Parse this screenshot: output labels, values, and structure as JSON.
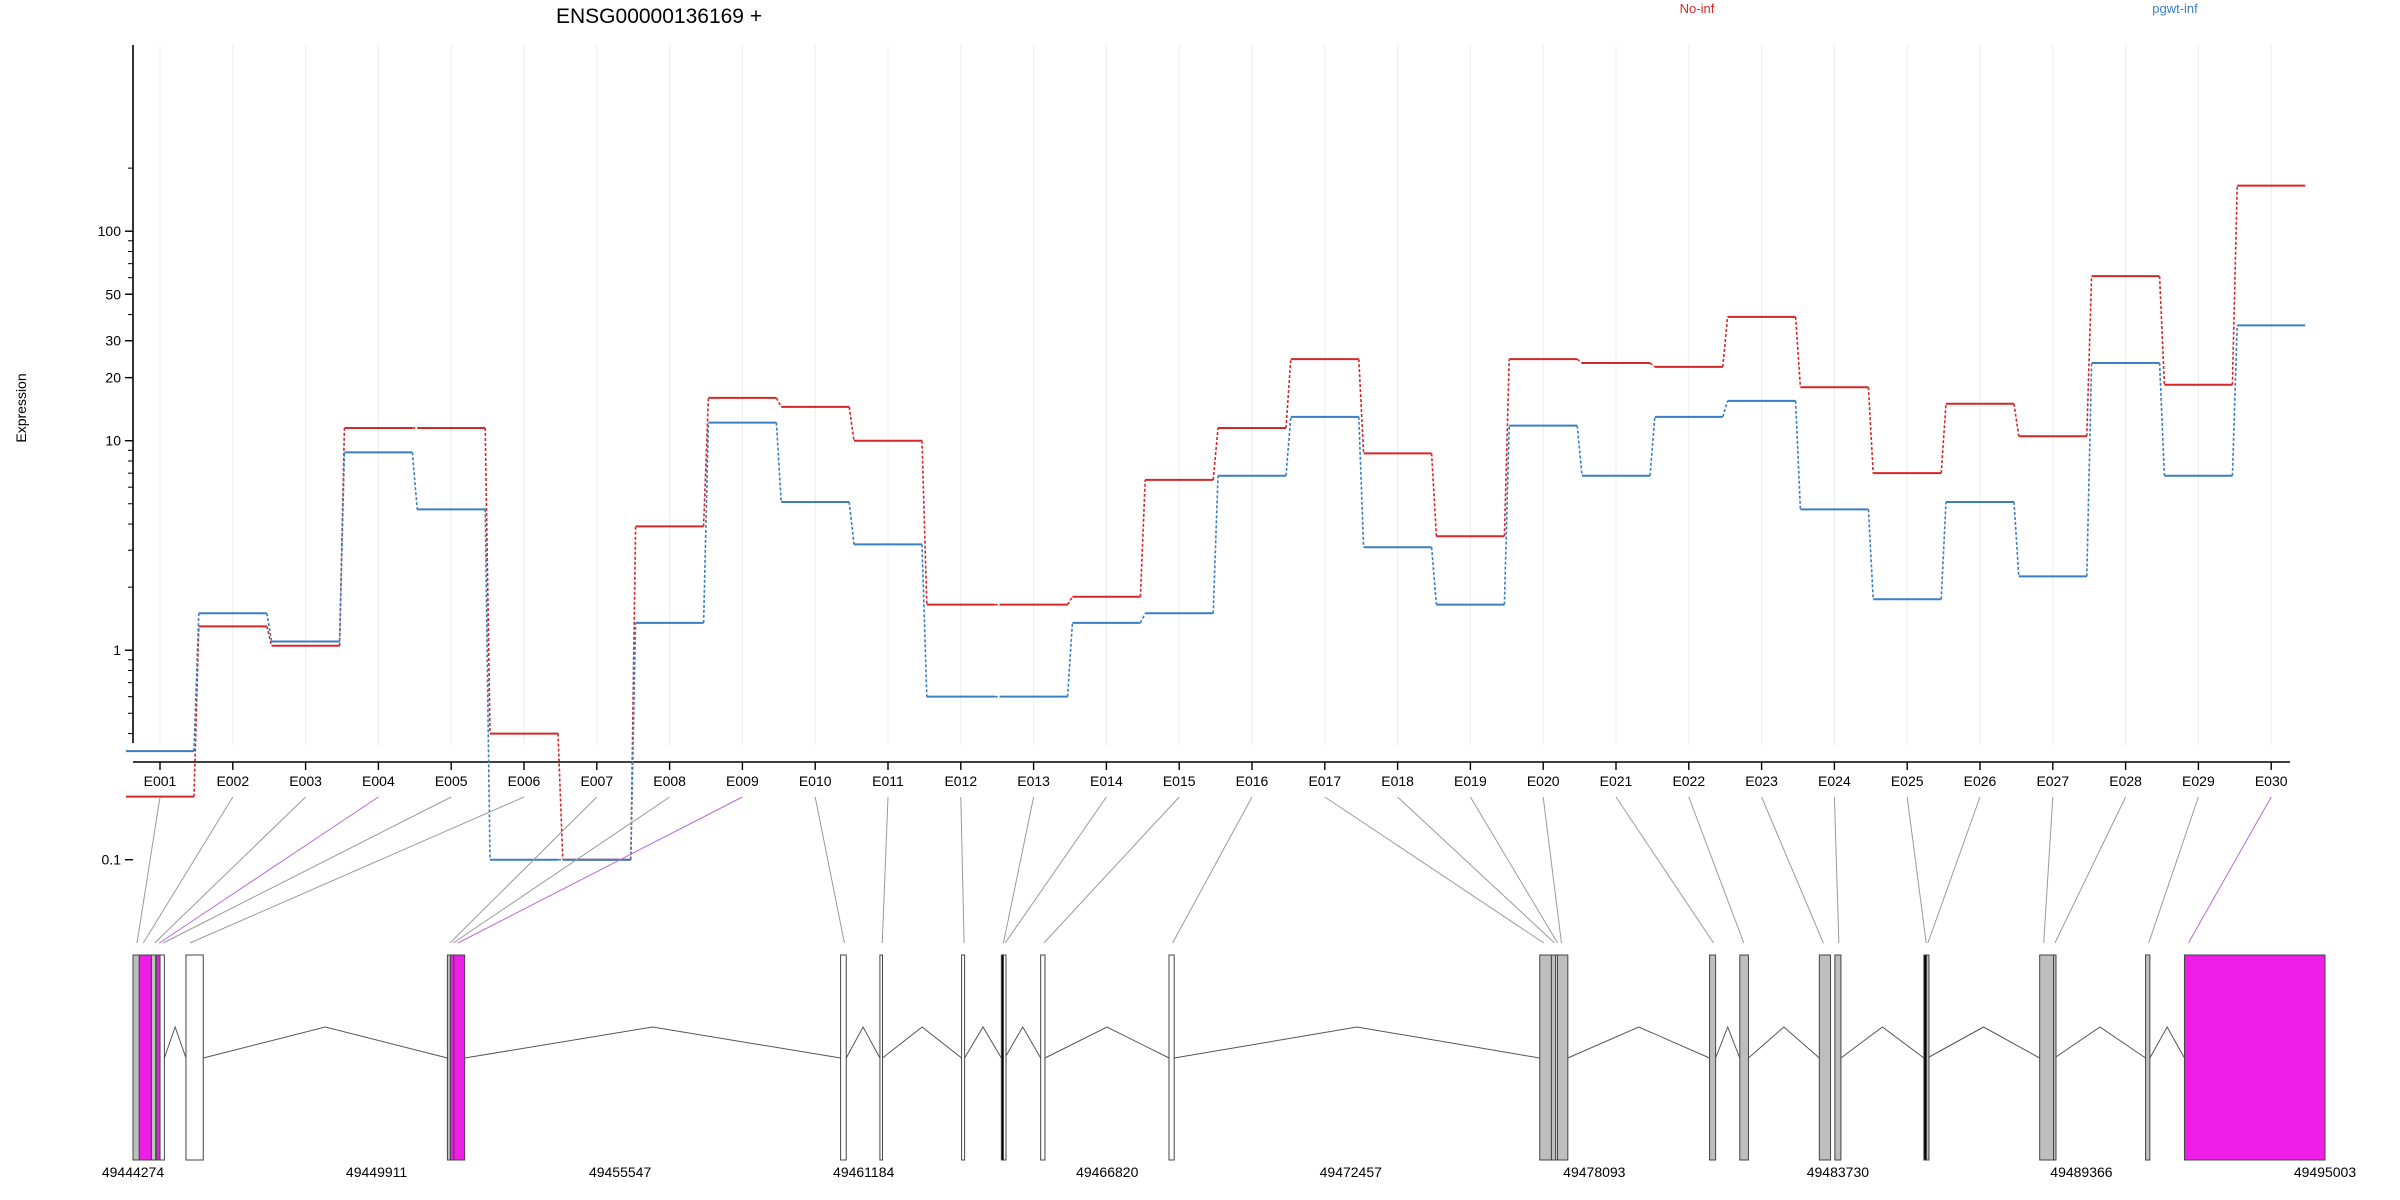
{
  "chart_data": {
    "type": "line",
    "title": "ENSG00000136169 +",
    "ylabel": "Expression",
    "yscale": "log",
    "y_ticks": [
      0.1,
      1,
      10,
      20,
      30,
      50,
      100
    ],
    "y_tick_labels": [
      "0.1",
      "1",
      "10",
      "20",
      "30",
      "50",
      "100"
    ],
    "grid": "vertical",
    "legend": "top",
    "categories": [
      "E001",
      "E002",
      "E003",
      "E004",
      "E005",
      "E006",
      "E007",
      "E008",
      "E009",
      "E010",
      "E011",
      "E012",
      "E013",
      "E014",
      "E015",
      "E016",
      "E017",
      "E018",
      "E019",
      "E020",
      "E021",
      "E022",
      "E023",
      "E024",
      "E025",
      "E026",
      "E027",
      "E028",
      "E029",
      "E030"
    ],
    "series": [
      {
        "name": "No-inf",
        "color": "#d62728",
        "values": [
          0.2,
          1.3,
          1.05,
          11.5,
          11.5,
          0.4,
          0.1,
          3.9,
          16,
          14.5,
          10,
          1.65,
          1.65,
          1.8,
          6.5,
          11.5,
          24.5,
          8.7,
          3.5,
          24.5,
          23.5,
          22.5,
          39,
          18,
          7,
          15,
          10.5,
          61,
          18.5,
          165
        ]
      },
      {
        "name": "pgwt-inf",
        "color": "#3a7fc1",
        "values": [
          0.33,
          1.5,
          1.1,
          8.8,
          4.7,
          0.1,
          0.1,
          1.35,
          12.2,
          5.1,
          3.2,
          0.6,
          0.6,
          1.35,
          1.5,
          6.8,
          13,
          3.1,
          1.65,
          11.8,
          6.8,
          13,
          15.5,
          4.7,
          1.75,
          5.1,
          2.25,
          23.5,
          6.8,
          35.5
        ]
      }
    ],
    "gene_model": {
      "coordinate_labels": [
        "49444274",
        "49449911",
        "49455547",
        "49461184",
        "49466820",
        "49472457",
        "49478093",
        "49483730",
        "49489366",
        "49495003"
      ],
      "coord_range": [
        49444274,
        49495003
      ],
      "exon_bins": [
        {
          "id": "E001",
          "start": 49444274,
          "end": 49444420,
          "fill": "#bebebe"
        },
        {
          "id": "E002",
          "start": 49444420,
          "end": 49444700,
          "fill": "#ee1ee6"
        },
        {
          "id": "E003",
          "start": 49444700,
          "end": 49444800,
          "fill": "#bebebe"
        },
        {
          "id": "E004",
          "start": 49444820,
          "end": 49444900,
          "fill": "#ee1ee6"
        },
        {
          "id": "E005",
          "start": 49444900,
          "end": 49445000,
          "fill": "#ffffff"
        },
        {
          "id": "E006",
          "start": 49445500,
          "end": 49445900,
          "fill": "#ffffff"
        },
        {
          "id": "E007",
          "start": 49451550,
          "end": 49451620,
          "fill": "#bebebe"
        },
        {
          "id": "E008",
          "start": 49451620,
          "end": 49451700,
          "fill": "#ee1ee6"
        },
        {
          "id": "E009",
          "start": 49451700,
          "end": 49451950,
          "fill": "#ee1ee6"
        },
        {
          "id": "E010",
          "start": 49460650,
          "end": 49460780,
          "fill": "#ffffff"
        },
        {
          "id": "E011",
          "start": 49461560,
          "end": 49461620,
          "fill": "#ffffff"
        },
        {
          "id": "E012",
          "start": 49463450,
          "end": 49463520,
          "fill": "#ffffff"
        },
        {
          "id": "E013",
          "start": 49464370,
          "end": 49464420,
          "fill": "#000000"
        },
        {
          "id": "E014",
          "start": 49464420,
          "end": 49464450,
          "fill": "#ffffff"
        },
        {
          "id": "E015",
          "start": 49465280,
          "end": 49465380,
          "fill": "#ffffff"
        },
        {
          "id": "E016",
          "start": 49468250,
          "end": 49468370,
          "fill": "#ffffff"
        },
        {
          "id": "E017",
          "start": 49476830,
          "end": 49477100,
          "fill": "#bebebe"
        },
        {
          "id": "E018",
          "start": 49477100,
          "end": 49477200,
          "fill": "#bebebe"
        },
        {
          "id": "E019",
          "start": 49477200,
          "end": 49477240,
          "fill": "#ffffff"
        },
        {
          "id": "E020",
          "start": 49477240,
          "end": 49477480,
          "fill": "#bebebe"
        },
        {
          "id": "E021",
          "start": 49480760,
          "end": 49480900,
          "fill": "#bebebe"
        },
        {
          "id": "E022",
          "start": 49481460,
          "end": 49481660,
          "fill": "#bebebe"
        },
        {
          "id": "E023",
          "start": 49483300,
          "end": 49483560,
          "fill": "#bebebe"
        },
        {
          "id": "E024",
          "start": 49483660,
          "end": 49483800,
          "fill": "#bebebe"
        },
        {
          "id": "E025",
          "start": 49485720,
          "end": 49485780,
          "fill": "#000000"
        },
        {
          "id": "E026",
          "start": 49485780,
          "end": 49485800,
          "fill": "#bebebe"
        },
        {
          "id": "E027",
          "start": 49488400,
          "end": 49488720,
          "fill": "#bebebe"
        },
        {
          "id": "E028",
          "start": 49488720,
          "end": 49488740,
          "fill": "#bebebe"
        },
        {
          "id": "E029",
          "start": 49490850,
          "end": 49490950,
          "fill": "#bebebe"
        },
        {
          "id": "E030",
          "start": 49491750,
          "end": 49495003,
          "fill": "#ee1ee6"
        }
      ],
      "highlighted_bins": [
        "E004",
        "E009",
        "E030"
      ]
    }
  }
}
